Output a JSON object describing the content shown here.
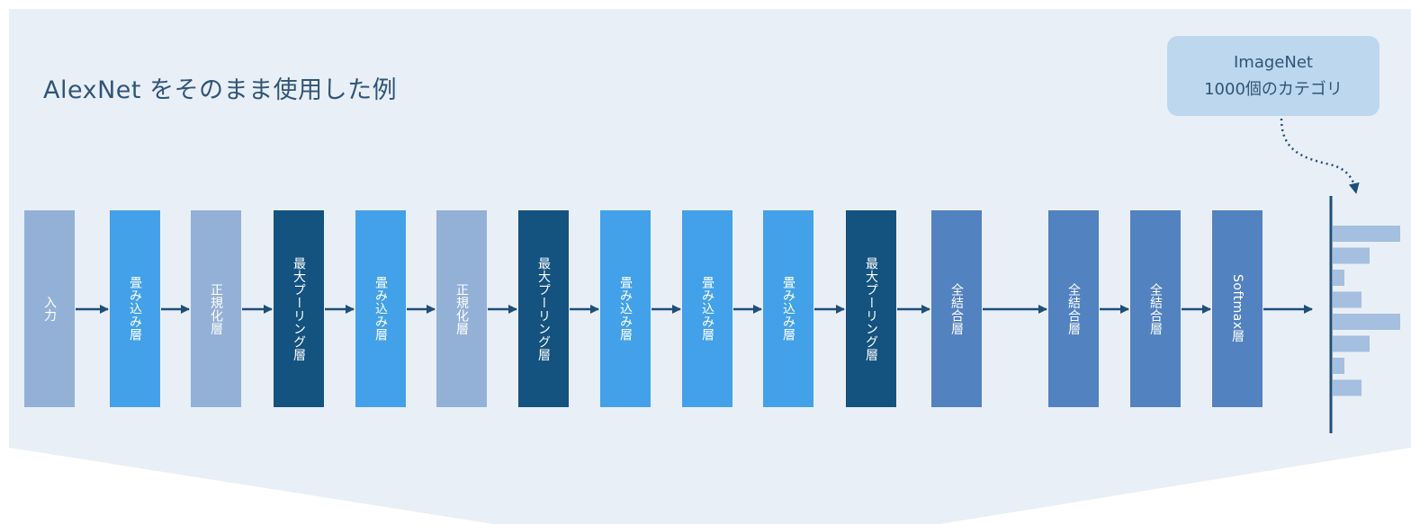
{
  "title": "AlexNet をそのまま使用した例",
  "callout": {
    "line1": "ImageNet",
    "line2": "1000個のカテゴリ"
  },
  "colors": {
    "panel": "#e9eff7",
    "input": "#93b1d6",
    "conv": "#42a1e8",
    "norm": "#93b1d6",
    "pool": "#14527f",
    "fc": "#5282bf",
    "arrow": "#1f4e79",
    "output_bar": "#a4bfdf"
  },
  "layers": [
    {
      "label": "入力",
      "kind": "input"
    },
    {
      "label": "畳み込み層",
      "kind": "conv"
    },
    {
      "label": "正規化層",
      "kind": "norm"
    },
    {
      "label": "最大プーリング層",
      "kind": "pool"
    },
    {
      "label": "畳み込み層",
      "kind": "conv"
    },
    {
      "label": "正規化層",
      "kind": "norm"
    },
    {
      "label": "最大プーリング層",
      "kind": "pool"
    },
    {
      "label": "畳み込み層",
      "kind": "conv"
    },
    {
      "label": "畳み込み層",
      "kind": "conv"
    },
    {
      "label": "畳み込み層",
      "kind": "conv"
    },
    {
      "label": "最大プーリング層",
      "kind": "pool"
    },
    {
      "label": "全結合層",
      "kind": "fc"
    },
    {
      "label": "全結合層",
      "kind": "fc"
    },
    {
      "label": "全結合層",
      "kind": "fc"
    },
    {
      "label": "Softmax層",
      "kind": "fc"
    }
  ],
  "output_bars": [
    1.0,
    0.55,
    0.17,
    0.42,
    1.0,
    0.55,
    0.17,
    0.42
  ]
}
